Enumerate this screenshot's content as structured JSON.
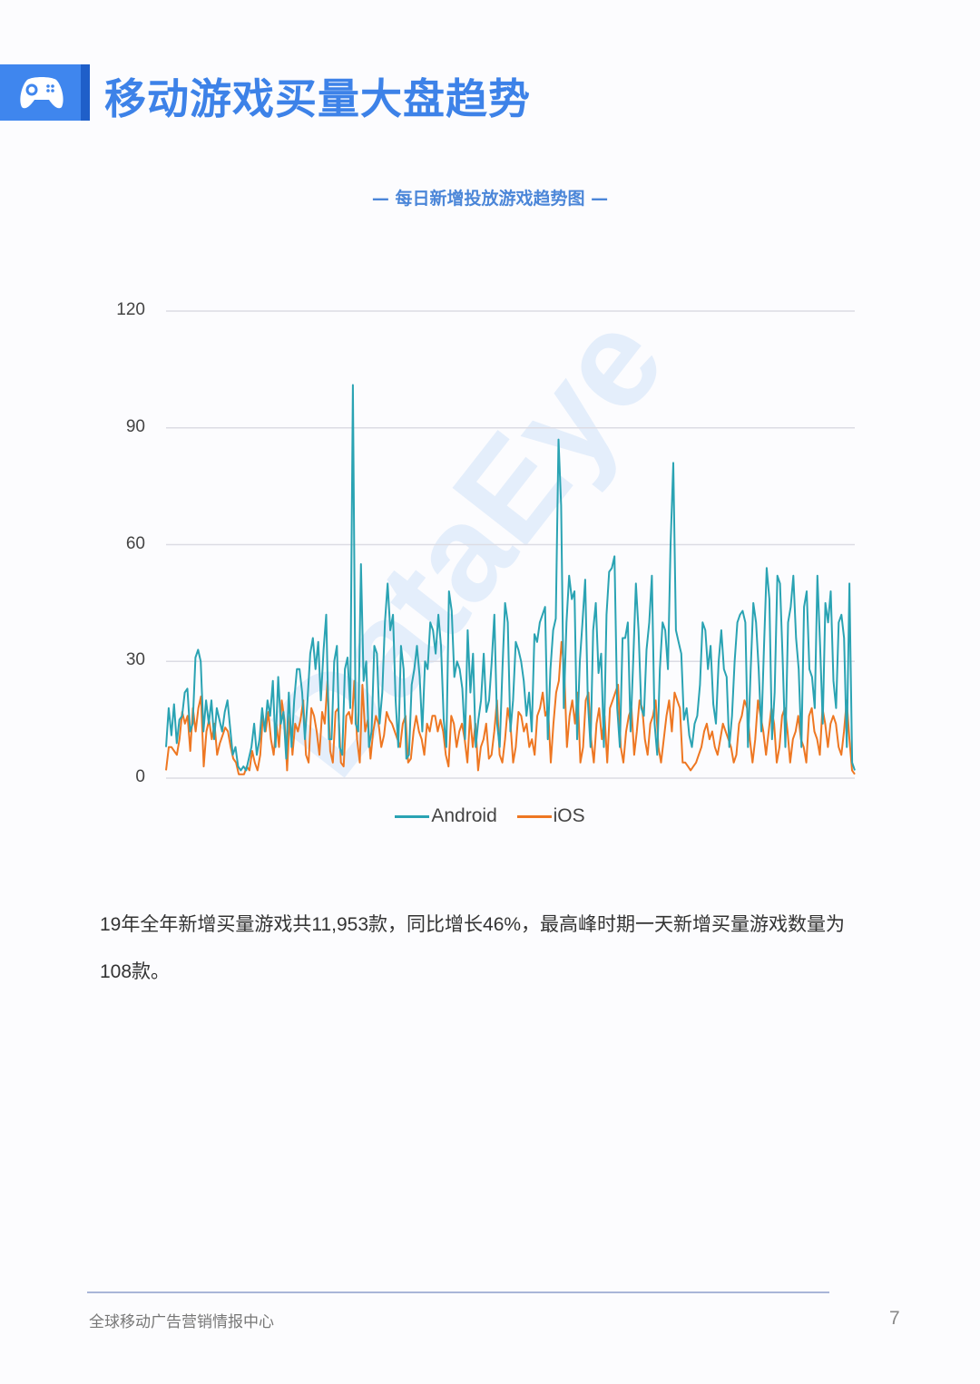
{
  "header": {
    "icon": "gamepad-icon",
    "title": "移动游戏买量大盘趋势",
    "accent_color": "#3f86ee"
  },
  "chart": {
    "title": "— 每日新增投放游戏趋势图 —"
  },
  "chart_data": {
    "type": "line",
    "title": "每日新增投放游戏趋势图",
    "xlabel": "",
    "ylabel": "",
    "ylim": [
      0,
      120
    ],
    "yticks": [
      0,
      30,
      60,
      90,
      120
    ],
    "grid": true,
    "legend_position": "bottom",
    "series": [
      {
        "name": "Android",
        "color": "#2aa3b3",
        "values": [
          8,
          18,
          11,
          19,
          9,
          15,
          16,
          22,
          23,
          12,
          14,
          31,
          33,
          30,
          12,
          20,
          14,
          20,
          10,
          18,
          15,
          12,
          17,
          20,
          13,
          6,
          8,
          3,
          2,
          3,
          2,
          5,
          8,
          14,
          6,
          10,
          18,
          12,
          20,
          16,
          25,
          8,
          26,
          14,
          17,
          5,
          22,
          8,
          20,
          28,
          28,
          22,
          10,
          20,
          32,
          36,
          28,
          35,
          20,
          33,
          42,
          10,
          10,
          30,
          34,
          8,
          6,
          28,
          31,
          18,
          101,
          14,
          12,
          55,
          25,
          30,
          8,
          12,
          34,
          32,
          14,
          22,
          40,
          50,
          38,
          42,
          20,
          8,
          34,
          28,
          5,
          6,
          24,
          28,
          34,
          26,
          12,
          30,
          28,
          40,
          38,
          32,
          42,
          34,
          15,
          8,
          48,
          43,
          26,
          30,
          28,
          23,
          10,
          38,
          22,
          32,
          8,
          15,
          20,
          32,
          17,
          20,
          30,
          42,
          14,
          8,
          28,
          45,
          40,
          12,
          20,
          35,
          33,
          30,
          25,
          16,
          22,
          12,
          37,
          35,
          40,
          42,
          44,
          10,
          28,
          38,
          41,
          87,
          70,
          18,
          40,
          52,
          46,
          48,
          10,
          30,
          40,
          51,
          20,
          8,
          38,
          45,
          27,
          32,
          8,
          42,
          53,
          54,
          57,
          18,
          8,
          36,
          36,
          40,
          12,
          30,
          50,
          38,
          18,
          16,
          33,
          40,
          52,
          14,
          6,
          28,
          40,
          38,
          28,
          60,
          81,
          38,
          35,
          32,
          15,
          18,
          11,
          8,
          14,
          16,
          24,
          40,
          38,
          28,
          34,
          19,
          14,
          30,
          38,
          28,
          26,
          8,
          16,
          30,
          40,
          42,
          43,
          40,
          8,
          28,
          45,
          40,
          28,
          12,
          34,
          54,
          46,
          10,
          22,
          52,
          50,
          30,
          8,
          40,
          44,
          52,
          36,
          28,
          8,
          44,
          48,
          28,
          26,
          18,
          52,
          34,
          14,
          45,
          40,
          48,
          25,
          18,
          40,
          42,
          36,
          8,
          50,
          4,
          2
        ]
      },
      {
        "name": "iOS",
        "color": "#ee7722",
        "values": [
          2,
          8,
          8,
          7,
          6,
          10,
          17,
          14,
          16,
          7,
          18,
          12,
          18,
          21,
          3,
          12,
          15,
          10,
          14,
          6,
          9,
          11,
          13,
          12,
          8,
          5,
          4,
          1,
          1,
          1,
          3,
          2,
          7,
          4,
          2,
          6,
          16,
          12,
          17,
          10,
          6,
          14,
          8,
          20,
          15,
          2,
          16,
          6,
          14,
          12,
          15,
          20,
          6,
          4,
          18,
          16,
          12,
          6,
          17,
          14,
          25,
          7,
          4,
          17,
          18,
          4,
          3,
          16,
          17,
          14,
          25,
          10,
          4,
          24,
          12,
          15,
          5,
          12,
          16,
          14,
          8,
          11,
          17,
          15,
          14,
          12,
          10,
          8,
          14,
          16,
          4,
          5,
          12,
          16,
          12,
          10,
          6,
          14,
          12,
          16,
          16,
          12,
          15,
          12,
          6,
          3,
          16,
          14,
          8,
          12,
          14,
          10,
          4,
          16,
          8,
          14,
          2,
          8,
          10,
          14,
          5,
          6,
          12,
          20,
          6,
          4,
          10,
          18,
          14,
          4,
          8,
          17,
          16,
          12,
          14,
          8,
          10,
          6,
          16,
          18,
          22,
          16,
          18,
          4,
          14,
          22,
          25,
          35,
          28,
          8,
          16,
          20,
          14,
          22,
          4,
          8,
          20,
          22,
          10,
          4,
          14,
          18,
          10,
          16,
          4,
          18,
          20,
          22,
          24,
          8,
          4,
          12,
          16,
          18,
          6,
          12,
          20,
          18,
          10,
          6,
          14,
          16,
          20,
          8,
          4,
          10,
          16,
          20,
          12,
          22,
          20,
          18,
          4,
          4,
          3,
          2,
          3,
          4,
          6,
          8,
          12,
          14,
          10,
          12,
          8,
          6,
          10,
          14,
          12,
          10,
          8,
          4,
          6,
          14,
          16,
          20,
          18,
          10,
          4,
          10,
          20,
          16,
          12,
          6,
          12,
          18,
          14,
          4,
          8,
          16,
          18,
          12,
          4,
          10,
          12,
          16,
          10,
          8,
          4,
          16,
          18,
          12,
          10,
          6,
          18,
          14,
          8,
          14,
          16,
          14,
          8,
          6,
          12,
          20,
          10,
          2,
          1
        ]
      }
    ]
  },
  "legend": {
    "android_label": "Android",
    "ios_label": "iOS"
  },
  "body": {
    "paragraph": "19年全年新增买量游戏共11,953款，同比增长46%，最高峰时期一天新增买量游戏数量为108款。"
  },
  "footer": {
    "text": "全球移动广告营销情报中心",
    "page_number": "7"
  }
}
